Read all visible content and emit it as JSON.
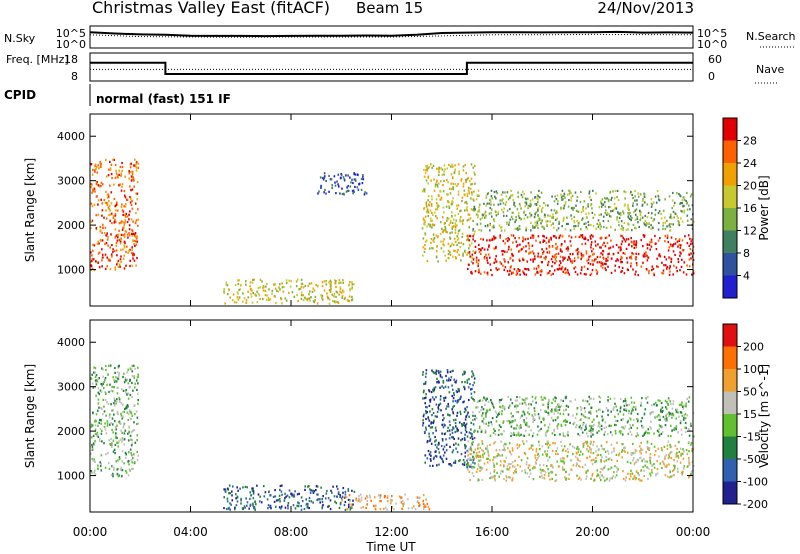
{
  "header": {
    "title": "Christmas Valley East (fitACF)",
    "beam": "Beam 15",
    "date": "24/Nov/2013"
  },
  "chart_data": [
    {
      "type": "line",
      "panel": "noise",
      "left_label": "N.Sky",
      "right_label": "N.Search",
      "left_ticks": [
        "10^5",
        "10^0"
      ],
      "right_ticks": [
        "10^5",
        "10^0"
      ],
      "series": [
        {
          "name": "N.Sky",
          "style": "solid",
          "x": [
            0,
            1,
            2,
            3,
            4,
            5,
            6,
            7,
            8,
            9,
            10,
            11,
            12,
            13,
            14,
            15,
            16,
            17,
            18,
            19,
            20,
            21,
            22,
            23,
            24
          ],
          "y": [
            0.72,
            0.66,
            0.62,
            0.6,
            0.56,
            0.55,
            0.55,
            0.54,
            0.55,
            0.56,
            0.56,
            0.57,
            0.56,
            0.6,
            0.68,
            0.7,
            0.72,
            0.72,
            0.71,
            0.72,
            0.72,
            0.73,
            0.7,
            0.71,
            0.7
          ]
        },
        {
          "name": "N.Search",
          "style": "dotted",
          "x": [
            0,
            2,
            4,
            6,
            8,
            10,
            12,
            14,
            16,
            18,
            20,
            22,
            24
          ],
          "y": [
            0.6,
            0.52,
            0.5,
            0.49,
            0.5,
            0.5,
            0.5,
            0.55,
            0.6,
            0.6,
            0.62,
            0.61,
            0.6
          ]
        }
      ]
    },
    {
      "type": "line",
      "panel": "frequency",
      "left_label": "Freq. [MHz]",
      "right_label": "Nave",
      "left_ticks": [
        "18",
        "8"
      ],
      "right_ticks": [
        "60",
        "0"
      ],
      "series": [
        {
          "name": "Freq.",
          "style": "solid",
          "x": [
            0,
            3,
            3,
            15,
            15,
            24
          ],
          "y": [
            14.5,
            14.5,
            10.5,
            10.5,
            14.5,
            14.5
          ]
        },
        {
          "name": "Nave",
          "style": "dotted",
          "x": [
            0,
            24
          ],
          "y": [
            25,
            25
          ]
        }
      ]
    },
    {
      "type": "heatmap",
      "panel": "power",
      "ylabel": "Slant Range [km]",
      "xlabel": "Time UT",
      "xlim": [
        0,
        24
      ],
      "ylim": [
        180,
        4500
      ],
      "y_ticks": [
        1000,
        2000,
        3000,
        4000
      ],
      "colorbar": {
        "label": "Power [dB]",
        "ticks": [
          "28",
          "24",
          "20",
          "16",
          "12",
          "8",
          "4"
        ],
        "colors": [
          "#2020d0",
          "#3050a0",
          "#3f8060",
          "#7cb040",
          "#c8c830",
          "#f0a000",
          "#ff6000",
          "#e00000"
        ]
      },
      "regions": [
        {
          "t": [
            0.0,
            1.9
          ],
          "r": [
            1000,
            3500
          ],
          "level": 0.82
        },
        {
          "t": [
            5.3,
            10.5
          ],
          "r": [
            250,
            800
          ],
          "level": 0.5
        },
        {
          "t": [
            9.0,
            11.0
          ],
          "r": [
            2700,
            3200
          ],
          "level": 0.15
        },
        {
          "t": [
            13.2,
            15.3
          ],
          "r": [
            1200,
            3400
          ],
          "level": 0.6
        },
        {
          "t": [
            15.0,
            24.0
          ],
          "r": [
            900,
            1800
          ],
          "level": 0.95
        },
        {
          "t": [
            15.2,
            24.0
          ],
          "r": [
            1900,
            2800
          ],
          "level": 0.45
        }
      ]
    },
    {
      "type": "heatmap",
      "panel": "velocity",
      "ylabel": "Slant Range [km]",
      "xlabel": "Time UT",
      "xlim": [
        0,
        24
      ],
      "ylim": [
        180,
        4500
      ],
      "y_ticks": [
        1000,
        2000,
        3000,
        4000
      ],
      "x_ticks": [
        "00:00",
        "04:00",
        "08:00",
        "12:00",
        "16:00",
        "20:00",
        "00:00"
      ],
      "colorbar": {
        "label": "Velocity [m s^-1]",
        "ticks": [
          "200",
          "100",
          "50",
          "15",
          "-15",
          "-50",
          "-100",
          "-200"
        ],
        "colors": [
          "#202090",
          "#3060b0",
          "#208040",
          "#60c030",
          "#c0c0b8",
          "#f0a030",
          "#ff7000",
          "#e01010"
        ]
      },
      "regions": [
        {
          "t": [
            0.0,
            1.9
          ],
          "r": [
            1000,
            3500
          ],
          "value": 10
        },
        {
          "t": [
            5.3,
            10.5
          ],
          "r": [
            250,
            800
          ],
          "value": 60
        },
        {
          "t": [
            10.0,
            13.5
          ],
          "r": [
            250,
            600
          ],
          "value": -40
        },
        {
          "t": [
            13.2,
            15.3
          ],
          "r": [
            1200,
            3400
          ],
          "value": 60
        },
        {
          "t": [
            15.0,
            24.0
          ],
          "r": [
            900,
            1800
          ],
          "value": 5
        },
        {
          "t": [
            15.2,
            24.0
          ],
          "r": [
            1900,
            2800
          ],
          "value": 10
        }
      ]
    }
  ],
  "cpid": {
    "label": "CPID",
    "text": "normal (fast) 151 IF"
  }
}
